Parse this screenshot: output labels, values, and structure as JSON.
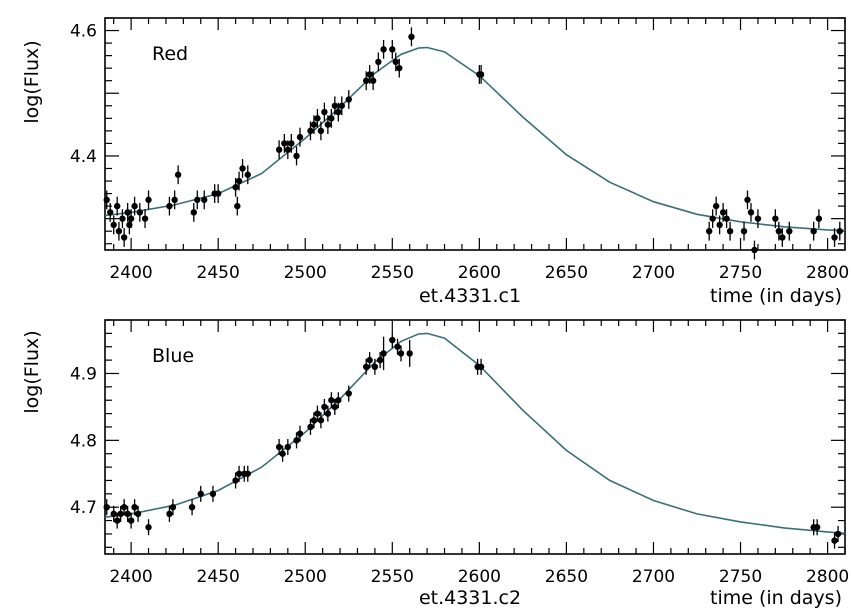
{
  "chart_data": [
    {
      "type": "scatter",
      "panel_label": "Red",
      "title": "et.4331.c1",
      "xlabel": "time (in days)",
      "ylabel": "log(Flux)",
      "xlim": [
        2385,
        2810
      ],
      "ylim": [
        4.25,
        4.62
      ],
      "xticks": [
        2400,
        2450,
        2500,
        2550,
        2600,
        2650,
        2700,
        2750,
        2800
      ],
      "yticks": [
        4.4,
        4.6
      ],
      "series": [
        {
          "points": [
            {
              "x": 2386,
              "y": 4.33,
              "e": 0.015
            },
            {
              "x": 2388,
              "y": 4.31,
              "e": 0.015
            },
            {
              "x": 2390,
              "y": 4.29,
              "e": 0.015
            },
            {
              "x": 2392,
              "y": 4.32,
              "e": 0.015
            },
            {
              "x": 2393,
              "y": 4.28,
              "e": 0.015
            },
            {
              "x": 2395,
              "y": 4.3,
              "e": 0.015
            },
            {
              "x": 2396,
              "y": 4.27,
              "e": 0.015
            },
            {
              "x": 2398,
              "y": 4.31,
              "e": 0.015
            },
            {
              "x": 2399,
              "y": 4.29,
              "e": 0.015
            },
            {
              "x": 2400,
              "y": 4.3,
              "e": 0.015
            },
            {
              "x": 2402,
              "y": 4.32,
              "e": 0.015
            },
            {
              "x": 2405,
              "y": 4.31,
              "e": 0.015
            },
            {
              "x": 2408,
              "y": 4.3,
              "e": 0.015
            },
            {
              "x": 2410,
              "y": 4.33,
              "e": 0.015
            },
            {
              "x": 2422,
              "y": 4.32,
              "e": 0.015
            },
            {
              "x": 2425,
              "y": 4.33,
              "e": 0.015
            },
            {
              "x": 2427,
              "y": 4.37,
              "e": 0.015
            },
            {
              "x": 2436,
              "y": 4.31,
              "e": 0.015
            },
            {
              "x": 2438,
              "y": 4.33,
              "e": 0.015
            },
            {
              "x": 2442,
              "y": 4.33,
              "e": 0.015
            },
            {
              "x": 2448,
              "y": 4.34,
              "e": 0.015
            },
            {
              "x": 2450,
              "y": 4.34,
              "e": 0.015
            },
            {
              "x": 2460,
              "y": 4.35,
              "e": 0.015
            },
            {
              "x": 2461,
              "y": 4.32,
              "e": 0.015
            },
            {
              "x": 2462,
              "y": 4.36,
              "e": 0.015
            },
            {
              "x": 2464,
              "y": 4.38,
              "e": 0.015
            },
            {
              "x": 2467,
              "y": 4.37,
              "e": 0.015
            },
            {
              "x": 2485,
              "y": 4.41,
              "e": 0.015
            },
            {
              "x": 2488,
              "y": 4.42,
              "e": 0.015
            },
            {
              "x": 2490,
              "y": 4.41,
              "e": 0.015
            },
            {
              "x": 2492,
              "y": 4.42,
              "e": 0.015
            },
            {
              "x": 2495,
              "y": 4.4,
              "e": 0.015
            },
            {
              "x": 2497,
              "y": 4.43,
              "e": 0.015
            },
            {
              "x": 2503,
              "y": 4.44,
              "e": 0.015
            },
            {
              "x": 2505,
              "y": 4.45,
              "e": 0.015
            },
            {
              "x": 2507,
              "y": 4.46,
              "e": 0.015
            },
            {
              "x": 2509,
              "y": 4.44,
              "e": 0.015
            },
            {
              "x": 2511,
              "y": 4.47,
              "e": 0.015
            },
            {
              "x": 2513,
              "y": 4.45,
              "e": 0.015
            },
            {
              "x": 2515,
              "y": 4.46,
              "e": 0.015
            },
            {
              "x": 2517,
              "y": 4.48,
              "e": 0.015
            },
            {
              "x": 2519,
              "y": 4.47,
              "e": 0.015
            },
            {
              "x": 2521,
              "y": 4.48,
              "e": 0.015
            },
            {
              "x": 2525,
              "y": 4.49,
              "e": 0.015
            },
            {
              "x": 2535,
              "y": 4.52,
              "e": 0.015
            },
            {
              "x": 2537,
              "y": 4.53,
              "e": 0.015
            },
            {
              "x": 2539,
              "y": 4.52,
              "e": 0.015
            },
            {
              "x": 2542,
              "y": 4.55,
              "e": 0.015
            },
            {
              "x": 2545,
              "y": 4.57,
              "e": 0.015
            },
            {
              "x": 2550,
              "y": 4.57,
              "e": 0.015
            },
            {
              "x": 2552,
              "y": 4.55,
              "e": 0.015
            },
            {
              "x": 2554,
              "y": 4.54,
              "e": 0.015
            },
            {
              "x": 2561,
              "y": 4.59,
              "e": 0.015
            },
            {
              "x": 2600,
              "y": 4.53,
              "e": 0.015
            },
            {
              "x": 2601,
              "y": 4.53,
              "e": 0.015
            },
            {
              "x": 2732,
              "y": 4.28,
              "e": 0.015
            },
            {
              "x": 2734,
              "y": 4.3,
              "e": 0.015
            },
            {
              "x": 2736,
              "y": 4.32,
              "e": 0.015
            },
            {
              "x": 2738,
              "y": 4.29,
              "e": 0.015
            },
            {
              "x": 2740,
              "y": 4.31,
              "e": 0.015
            },
            {
              "x": 2742,
              "y": 4.3,
              "e": 0.015
            },
            {
              "x": 2744,
              "y": 4.28,
              "e": 0.015
            },
            {
              "x": 2752,
              "y": 4.28,
              "e": 0.015
            },
            {
              "x": 2754,
              "y": 4.33,
              "e": 0.015
            },
            {
              "x": 2756,
              "y": 4.31,
              "e": 0.015
            },
            {
              "x": 2758,
              "y": 4.25,
              "e": 0.015
            },
            {
              "x": 2760,
              "y": 4.3,
              "e": 0.015
            },
            {
              "x": 2770,
              "y": 4.3,
              "e": 0.015
            },
            {
              "x": 2772,
              "y": 4.28,
              "e": 0.015
            },
            {
              "x": 2774,
              "y": 4.27,
              "e": 0.015
            },
            {
              "x": 2778,
              "y": 4.28,
              "e": 0.015
            },
            {
              "x": 2792,
              "y": 4.28,
              "e": 0.015
            },
            {
              "x": 2795,
              "y": 4.3,
              "e": 0.015
            },
            {
              "x": 2804,
              "y": 4.27,
              "e": 0.015
            },
            {
              "x": 2807,
              "y": 4.28,
              "e": 0.015
            }
          ]
        }
      ],
      "fit": {
        "x": [
          2385,
          2400,
          2425,
          2450,
          2475,
          2500,
          2520,
          2540,
          2555,
          2565,
          2570,
          2580,
          2600,
          2625,
          2650,
          2675,
          2700,
          2725,
          2750,
          2775,
          2800,
          2810
        ],
        "y": [
          4.305,
          4.31,
          4.322,
          4.34,
          4.372,
          4.428,
          4.478,
          4.532,
          4.562,
          4.572,
          4.573,
          4.566,
          4.528,
          4.462,
          4.402,
          4.358,
          4.327,
          4.307,
          4.295,
          4.287,
          4.282,
          4.281
        ]
      },
      "colors": {
        "fit": "#3a6f78",
        "points": "#000000"
      }
    },
    {
      "type": "scatter",
      "panel_label": "Blue",
      "title": "et.4331.c2",
      "xlabel": "time (in days)",
      "ylabel": "log(Flux)",
      "xlim": [
        2385,
        2810
      ],
      "ylim": [
        4.63,
        4.98
      ],
      "xticks": [
        2400,
        2450,
        2500,
        2550,
        2600,
        2650,
        2700,
        2750,
        2800
      ],
      "yticks": [
        4.7,
        4.8,
        4.9
      ],
      "series": [
        {
          "points": [
            {
              "x": 2386,
              "y": 4.7,
              "e": 0.012
            },
            {
              "x": 2390,
              "y": 4.69,
              "e": 0.012
            },
            {
              "x": 2392,
              "y": 4.68,
              "e": 0.012
            },
            {
              "x": 2394,
              "y": 4.69,
              "e": 0.012
            },
            {
              "x": 2396,
              "y": 4.7,
              "e": 0.012
            },
            {
              "x": 2398,
              "y": 4.69,
              "e": 0.012
            },
            {
              "x": 2400,
              "y": 4.68,
              "e": 0.012
            },
            {
              "x": 2402,
              "y": 4.7,
              "e": 0.012
            },
            {
              "x": 2404,
              "y": 4.69,
              "e": 0.012
            },
            {
              "x": 2410,
              "y": 4.67,
              "e": 0.012
            },
            {
              "x": 2422,
              "y": 4.69,
              "e": 0.012
            },
            {
              "x": 2424,
              "y": 4.7,
              "e": 0.012
            },
            {
              "x": 2435,
              "y": 4.7,
              "e": 0.012
            },
            {
              "x": 2440,
              "y": 4.72,
              "e": 0.012
            },
            {
              "x": 2447,
              "y": 4.72,
              "e": 0.012
            },
            {
              "x": 2460,
              "y": 4.74,
              "e": 0.012
            },
            {
              "x": 2462,
              "y": 4.75,
              "e": 0.012
            },
            {
              "x": 2465,
              "y": 4.75,
              "e": 0.012
            },
            {
              "x": 2467,
              "y": 4.75,
              "e": 0.012
            },
            {
              "x": 2485,
              "y": 4.79,
              "e": 0.012
            },
            {
              "x": 2487,
              "y": 4.78,
              "e": 0.012
            },
            {
              "x": 2490,
              "y": 4.79,
              "e": 0.012
            },
            {
              "x": 2495,
              "y": 4.8,
              "e": 0.012
            },
            {
              "x": 2497,
              "y": 4.81,
              "e": 0.012
            },
            {
              "x": 2503,
              "y": 4.82,
              "e": 0.012
            },
            {
              "x": 2505,
              "y": 4.83,
              "e": 0.012
            },
            {
              "x": 2507,
              "y": 4.84,
              "e": 0.012
            },
            {
              "x": 2509,
              "y": 4.83,
              "e": 0.012
            },
            {
              "x": 2511,
              "y": 4.85,
              "e": 0.012
            },
            {
              "x": 2513,
              "y": 4.84,
              "e": 0.012
            },
            {
              "x": 2515,
              "y": 4.86,
              "e": 0.012
            },
            {
              "x": 2517,
              "y": 4.85,
              "e": 0.012
            },
            {
              "x": 2519,
              "y": 4.86,
              "e": 0.012
            },
            {
              "x": 2525,
              "y": 4.87,
              "e": 0.012
            },
            {
              "x": 2535,
              "y": 4.91,
              "e": 0.012
            },
            {
              "x": 2537,
              "y": 4.92,
              "e": 0.012
            },
            {
              "x": 2540,
              "y": 4.91,
              "e": 0.012
            },
            {
              "x": 2543,
              "y": 4.92,
              "e": 0.012
            },
            {
              "x": 2545,
              "y": 4.93,
              "e": 0.025
            },
            {
              "x": 2550,
              "y": 4.95,
              "e": 0.012
            },
            {
              "x": 2553,
              "y": 4.94,
              "e": 0.012
            },
            {
              "x": 2555,
              "y": 4.93,
              "e": 0.012
            },
            {
              "x": 2560,
              "y": 4.93,
              "e": 0.02
            },
            {
              "x": 2599,
              "y": 4.91,
              "e": 0.012
            },
            {
              "x": 2601,
              "y": 4.91,
              "e": 0.012
            },
            {
              "x": 2792,
              "y": 4.67,
              "e": 0.012
            },
            {
              "x": 2794,
              "y": 4.67,
              "e": 0.012
            },
            {
              "x": 2804,
              "y": 4.65,
              "e": 0.012
            },
            {
              "x": 2806,
              "y": 4.66,
              "e": 0.012
            }
          ]
        }
      ],
      "fit": {
        "x": [
          2385,
          2400,
          2425,
          2450,
          2475,
          2500,
          2520,
          2540,
          2555,
          2565,
          2570,
          2580,
          2600,
          2625,
          2650,
          2675,
          2700,
          2725,
          2750,
          2775,
          2800,
          2810
        ],
        "y": [
          4.685,
          4.69,
          4.703,
          4.725,
          4.76,
          4.812,
          4.862,
          4.917,
          4.948,
          4.959,
          4.96,
          4.953,
          4.912,
          4.845,
          4.785,
          4.74,
          4.71,
          4.69,
          4.678,
          4.669,
          4.663,
          4.661
        ]
      },
      "colors": {
        "fit": "#3a6f78",
        "points": "#000000"
      }
    }
  ]
}
